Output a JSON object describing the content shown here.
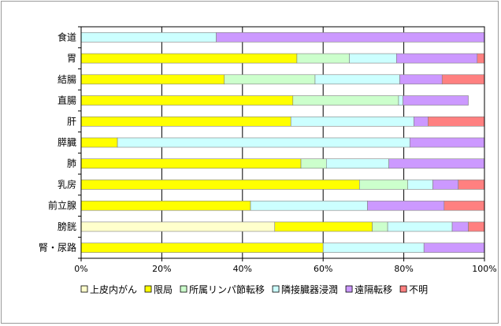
{
  "chart_data": {
    "type": "bar",
    "orientation": "horizontal",
    "stacked": "percent",
    "categories": [
      "食道",
      "胃",
      "結腸",
      "直腸",
      "肝",
      "膵臓",
      "肺",
      "乳房",
      "前立腺",
      "膀胱",
      "腎・尿路"
    ],
    "series": [
      {
        "name": "上皮内がん",
        "color": "#ffffcc",
        "values": [
          0,
          0,
          0,
          0,
          0,
          0,
          0,
          0,
          0,
          48,
          0
        ]
      },
      {
        "name": "限局",
        "color": "#ffff00",
        "values": [
          0,
          53.5,
          35.5,
          52.5,
          52,
          9,
          54.5,
          69,
          42,
          24.2,
          60
        ]
      },
      {
        "name": "所属リンパ節転移",
        "color": "#ccffcc",
        "values": [
          0,
          13,
          22.5,
          26.2,
          0,
          0,
          6.3,
          12,
          0,
          3.8,
          0
        ]
      },
      {
        "name": "隣接臓器浸潤",
        "color": "#ccffff",
        "values": [
          33.5,
          11.7,
          21,
          1.1,
          30.5,
          72.5,
          15.5,
          6.2,
          29,
          16,
          25
        ]
      },
      {
        "name": "遠隔転移",
        "color": "#cc99ff",
        "values": [
          66.5,
          20,
          10.5,
          16.2,
          3.5,
          18.5,
          23.7,
          6.3,
          19,
          4,
          15
        ]
      },
      {
        "name": "不明",
        "color": "#ff8080",
        "values": [
          0,
          1.8,
          10.5,
          0,
          14,
          0,
          0,
          6.5,
          10,
          4,
          0
        ]
      }
    ],
    "xlim": [
      0,
      100
    ],
    "xticks": [
      "0%",
      "20%",
      "40%",
      "60%",
      "80%",
      "100%"
    ],
    "grid": true,
    "legend": "bottom"
  }
}
